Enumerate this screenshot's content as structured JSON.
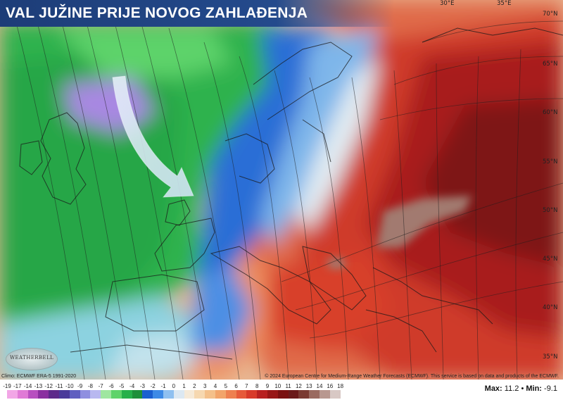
{
  "title": "VAL JUŽINE PRIJE NOVOG ZAHLAĐENJA",
  "credit_left": "Climo: ECMWF ERA-5 1991-2020",
  "credit_right": "© 2024 European Centre for Medium-Range Weather Forecasts (ECMWF). This service is based on data and products of the ECMWF.",
  "logo_text": "WEATHERBELL",
  "lon_labels": [
    "30°E",
    "35°E"
  ],
  "lat_labels": [
    "70°N",
    "65°N",
    "60°N",
    "55°N",
    "50°N",
    "45°N",
    "40°N",
    "35°N"
  ],
  "legend": {
    "ticks": [
      "-19",
      "-17",
      "-14",
      "-13",
      "-12",
      "-11",
      "-10",
      "-9",
      "-8",
      "-7",
      "-6",
      "-5",
      "-4",
      "-3",
      "-2",
      "-1",
      "0",
      "1",
      "2",
      "3",
      "4",
      "5",
      "6",
      "7",
      "8",
      "9",
      "10",
      "11",
      "12",
      "13",
      "14",
      "16",
      "18"
    ],
    "colors": [
      "#f2a6e6",
      "#e07ad6",
      "#b84fc0",
      "#8a2fa0",
      "#5d2a8a",
      "#4a3a9a",
      "#5f5fc0",
      "#8f8fe0",
      "#b8b8f0",
      "#9fe6a0",
      "#5fd36a",
      "#27b04a",
      "#1e8f3a",
      "#1a5fd0",
      "#3d8ae6",
      "#8fc0f0",
      "#dce8f2",
      "#f6ead8",
      "#f6d8b0",
      "#f4c08a",
      "#f2a46a",
      "#ee8050",
      "#e65a3a",
      "#d83a2a",
      "#b82020",
      "#981616",
      "#7a1010",
      "#6a1a1a",
      "#7a3a32",
      "#9a6a60",
      "#b89890",
      "#d8c8c4"
    ]
  },
  "max_label": "Max:",
  "max_value": "11.2",
  "separator": "•",
  "min_label": "Min:",
  "min_value": "-9.1",
  "colors": {
    "title_bar": "#244a8c",
    "cold_green": "#27b04a",
    "blue": "#1a5fd0",
    "warm_red": "#d83a2a",
    "dark_red": "#7a1010"
  }
}
